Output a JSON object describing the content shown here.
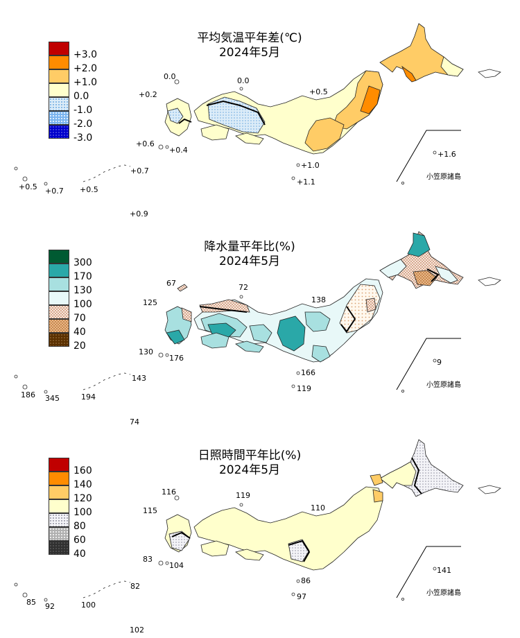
{
  "temperature": {
    "title": "平均気温平年差(℃)",
    "period": "2024年5月",
    "legend": [
      {
        "label": "+3.0",
        "color": "#c00000",
        "pattern": "solid"
      },
      {
        "label": "+2.0",
        "color": "#ff8c00",
        "pattern": "solid"
      },
      {
        "label": "+1.0",
        "color": "#ffcc66",
        "pattern": "solid"
      },
      {
        "label": "0.0",
        "color": "#ffffcc",
        "pattern": "solid"
      },
      {
        "label": "-1.0",
        "color": "#aad4f0",
        "pattern": "dots-light"
      },
      {
        "label": "-2.0",
        "color": "#5599ee",
        "pattern": "dots"
      },
      {
        "label": "-3.0",
        "color": "#0000cc",
        "pattern": "dots-dense"
      }
    ],
    "values": [
      "0.0",
      "0.0",
      "+0.2",
      "+0.5",
      "+0.6",
      "+0.4",
      "+0.7",
      "+1.6",
      "+1.0",
      "+1.1",
      "+0.5",
      "+0.7",
      "+0.5",
      "+0.9"
    ],
    "ogasawara": "小笠原諸島"
  },
  "precipitation": {
    "title": "降水量平年比(%)",
    "period": "2024年5月",
    "legend": [
      {
        "label": "300",
        "color": "#005a32",
        "pattern": "solid"
      },
      {
        "label": "170",
        "color": "#2aa8a8",
        "pattern": "solid"
      },
      {
        "label": "130",
        "color": "#a8e0e0",
        "pattern": "solid"
      },
      {
        "label": "100",
        "color": "#e8f8f8",
        "pattern": "solid"
      },
      {
        "label": "70",
        "color": "#f0d8c8",
        "pattern": "check-light"
      },
      {
        "label": "40",
        "color": "#c88850",
        "pattern": "check"
      },
      {
        "label": "20",
        "color": "#5a3000",
        "pattern": "dots-dense"
      }
    ],
    "values": [
      "67",
      "72",
      "125",
      "138",
      "130",
      "176",
      "143",
      "9",
      "166",
      "119",
      "186",
      "345",
      "194",
      "74"
    ],
    "ogasawara": "小笠原諸島"
  },
  "sunshine": {
    "title": "日照時間平年比(%)",
    "period": "2024年5月",
    "legend": [
      {
        "label": "160",
        "color": "#c00000",
        "pattern": "solid"
      },
      {
        "label": "140",
        "color": "#ff8c00",
        "pattern": "solid"
      },
      {
        "label": "120",
        "color": "#ffcc66",
        "pattern": "solid"
      },
      {
        "label": "100",
        "color": "#ffffcc",
        "pattern": "solid"
      },
      {
        "label": "80",
        "color": "#e0e0e0",
        "pattern": "dots-light"
      },
      {
        "label": "60",
        "color": "#909090",
        "pattern": "dots"
      },
      {
        "label": "40",
        "color": "#303030",
        "pattern": "dots-dense"
      }
    ],
    "values": [
      "116",
      "119",
      "115",
      "110",
      "83",
      "104",
      "82",
      "141",
      "86",
      "97",
      "85",
      "92",
      "100",
      "102"
    ],
    "ogasawara": "小笠原諸島"
  }
}
